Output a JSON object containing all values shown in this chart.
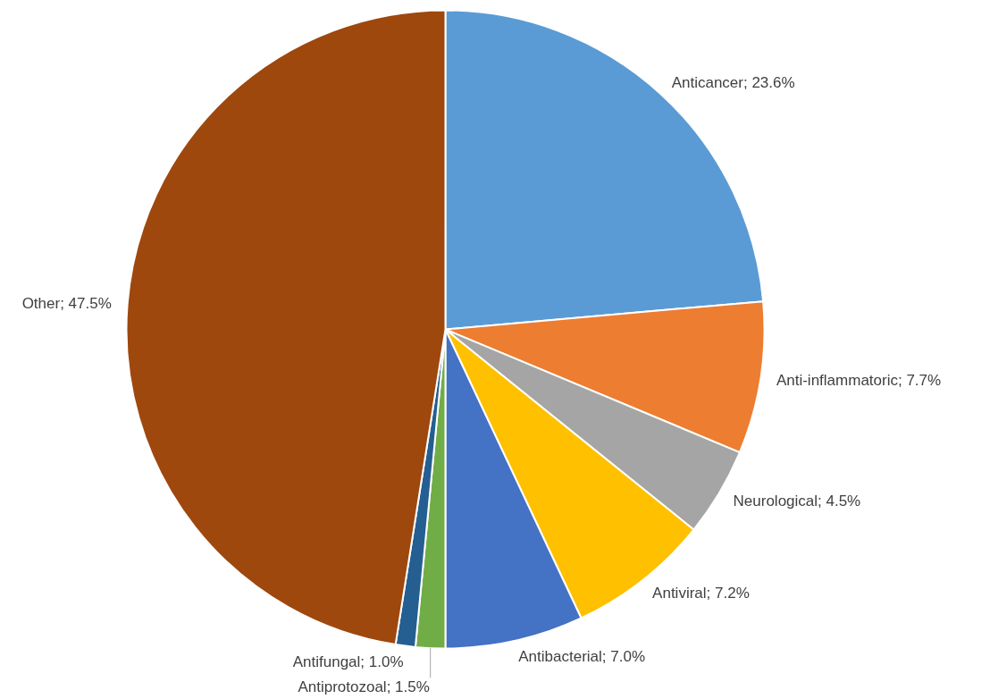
{
  "chart_data": {
    "type": "pie",
    "categories": [
      "Anticancer",
      "Anti-inflammatoric",
      "Neurological",
      "Antiviral",
      "Antibacterial",
      "Antiprotozoal",
      "Antifungal",
      "Other"
    ],
    "values": [
      23.6,
      7.7,
      4.5,
      7.2,
      7.0,
      1.5,
      1.0,
      47.5
    ],
    "value_labels": [
      "23.6%",
      "7.7%",
      "4.5%",
      "7.2%",
      "7.0%",
      "1.5%",
      "1.0%",
      "47.5%"
    ],
    "colors": [
      "#5b9bd5",
      "#ed7d31",
      "#a5a5a5",
      "#ffc000",
      "#4472c4",
      "#70ad47",
      "#255e91",
      "#9e480e"
    ]
  }
}
